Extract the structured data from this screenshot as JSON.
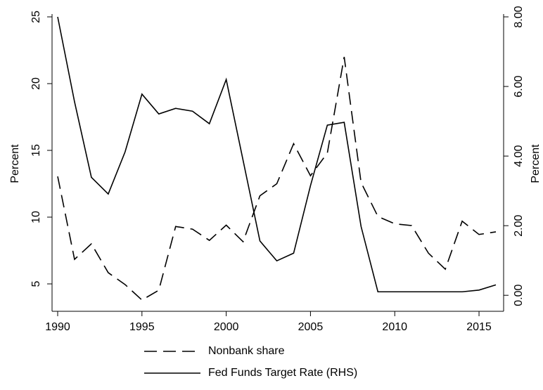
{
  "chart_data": {
    "type": "line",
    "y_label": "Percent",
    "y2_label": "Percent",
    "x": [
      1990,
      1991,
      1992,
      1993,
      1994,
      1995,
      1996,
      1997,
      1998,
      1999,
      2000,
      2001,
      2002,
      2003,
      2004,
      2005,
      2006,
      2007,
      2008,
      2009,
      2010,
      2011,
      2012,
      2013,
      2014,
      2015,
      2016
    ],
    "series": [
      {
        "name": "Nonbank share",
        "color": "#000000",
        "dash": "18,9",
        "axis": "y",
        "values": [
          13.05,
          6.84,
          8.0,
          5.84,
          4.95,
          3.79,
          4.53,
          9.3,
          9.1,
          8.26,
          9.4,
          8.16,
          11.6,
          12.5,
          15.5,
          13.1,
          14.8,
          22.0,
          12.6,
          10.05,
          9.5,
          9.37,
          7.3,
          6.1,
          9.7,
          8.7,
          8.9
        ]
      },
      {
        "name": "Fed Funds Target Rate (RHS)",
        "color": "#000000",
        "axis": "y2",
        "values": [
          8.0,
          5.56,
          3.39,
          2.91,
          4.12,
          5.78,
          5.21,
          5.37,
          5.29,
          4.93,
          6.2,
          3.88,
          1.56,
          0.99,
          1.21,
          3.15,
          4.89,
          4.97,
          1.98,
          0.1,
          0.1,
          0.1,
          0.1,
          0.1,
          0.1,
          0.15,
          0.3
        ]
      }
    ],
    "xlim": [
      1990,
      2016
    ],
    "xticks": [
      1990,
      1995,
      2000,
      2005,
      2010,
      2015
    ],
    "ylim": [
      3,
      25
    ],
    "yticks": [
      5,
      10,
      15,
      20,
      25
    ],
    "y2lim": [
      -0.44,
      8
    ],
    "y2ticks": [
      {
        "value": 0,
        "label": "0.00"
      },
      {
        "value": 2,
        "label": "2.00"
      },
      {
        "value": 4,
        "label": "4.00"
      },
      {
        "value": 6,
        "label": "6.00"
      },
      {
        "value": 8,
        "label": "8.00"
      }
    ],
    "grid": false
  }
}
